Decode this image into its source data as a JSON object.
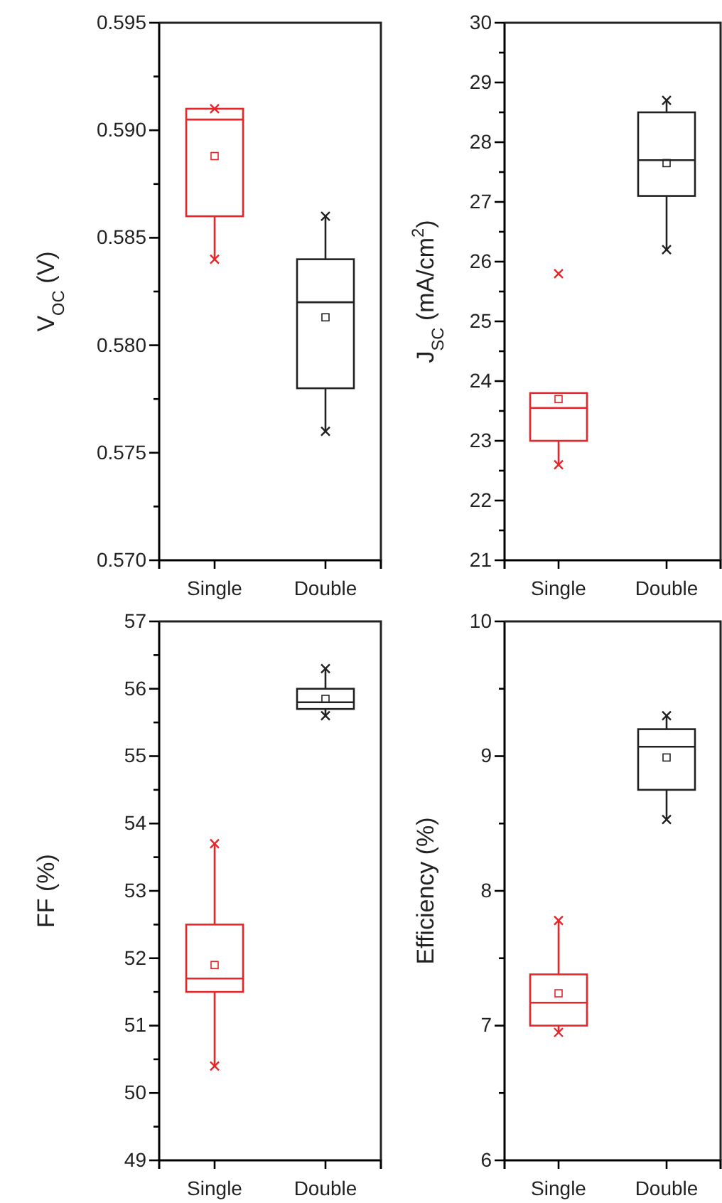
{
  "chart_data": [
    {
      "type": "box",
      "ylabel": "V$_{OC}$ (V)",
      "categories": [
        "Single",
        "Double"
      ],
      "colors": [
        "#e8262a",
        "#222222"
      ],
      "boxes": [
        {
          "low": 0.584,
          "q1": 0.586,
          "median": 0.5905,
          "q3": 0.591,
          "high": 0.591,
          "mean": 0.5888,
          "outliers": [
            0.584,
            0.591
          ]
        },
        {
          "low": 0.576,
          "q1": 0.578,
          "median": 0.582,
          "q3": 0.584,
          "high": 0.586,
          "mean": 0.5813,
          "outliers": [
            0.576,
            0.586
          ]
        }
      ],
      "ylim": [
        0.57,
        0.595
      ],
      "yticks": [
        {
          "value": 0.57,
          "label": "0.570"
        },
        {
          "value": 0.5725,
          "label": null
        },
        {
          "value": 0.575,
          "label": "0.575"
        },
        {
          "value": 0.5775,
          "label": null
        },
        {
          "value": 0.58,
          "label": "0.580"
        },
        {
          "value": 0.5825,
          "label": null
        },
        {
          "value": 0.585,
          "label": "0.585"
        },
        {
          "value": 0.5875,
          "label": null
        },
        {
          "value": 0.59,
          "label": "0.590"
        },
        {
          "value": 0.5925,
          "label": null
        },
        {
          "value": 0.595,
          "label": "0.595"
        }
      ]
    },
    {
      "type": "box",
      "ylabel": "J$_{SC}$ (mA/cm$^{2}$)",
      "categories": [
        "Single",
        "Double"
      ],
      "colors": [
        "#e8262a",
        "#222222"
      ],
      "boxes": [
        {
          "low": 22.6,
          "q1": 23.0,
          "median": 23.55,
          "q3": 23.8,
          "high": 23.8,
          "mean": 23.7,
          "outliers": [
            22.6,
            25.8
          ]
        },
        {
          "low": 26.2,
          "q1": 27.1,
          "median": 27.7,
          "q3": 28.5,
          "high": 28.7,
          "mean": 27.65,
          "outliers": [
            26.2,
            28.7
          ]
        }
      ],
      "ylim": [
        21,
        30
      ],
      "yticks": [
        21,
        {
          "value": 21.5,
          "label": null
        },
        22,
        {
          "value": 22.5,
          "label": null
        },
        23,
        {
          "value": 23.5,
          "label": null
        },
        24,
        {
          "value": 24.5,
          "label": null
        },
        25,
        {
          "value": 25.5,
          "label": null
        },
        26,
        {
          "value": 26.5,
          "label": null
        },
        27,
        {
          "value": 27.5,
          "label": null
        },
        28,
        {
          "value": 28.5,
          "label": null
        },
        29,
        {
          "value": 29.5,
          "label": null
        },
        30
      ]
    },
    {
      "type": "box",
      "ylabel": "FF (%)",
      "categories": [
        "Single",
        "Double"
      ],
      "colors": [
        "#e8262a",
        "#222222"
      ],
      "boxes": [
        {
          "low": 50.4,
          "q1": 51.5,
          "median": 51.7,
          "q3": 52.5,
          "high": 53.7,
          "mean": 51.9,
          "outliers": [
            50.4,
            53.7
          ]
        },
        {
          "low": 55.6,
          "q1": 55.7,
          "median": 55.8,
          "q3": 56.0,
          "high": 56.3,
          "mean": 55.85,
          "outliers": [
            55.6,
            56.3
          ]
        }
      ],
      "ylim": [
        49,
        57
      ],
      "yticks": [
        49,
        {
          "value": 49.5,
          "label": null
        },
        50,
        {
          "value": 50.5,
          "label": null
        },
        51,
        {
          "value": 51.5,
          "label": null
        },
        52,
        {
          "value": 52.5,
          "label": null
        },
        53,
        {
          "value": 53.5,
          "label": null
        },
        54,
        {
          "value": 54.5,
          "label": null
        },
        55,
        {
          "value": 55.5,
          "label": null
        },
        56,
        {
          "value": 56.5,
          "label": null
        },
        57
      ]
    },
    {
      "type": "box",
      "ylabel": "Efficiency (%)",
      "categories": [
        "Single",
        "Double"
      ],
      "colors": [
        "#e8262a",
        "#222222"
      ],
      "boxes": [
        {
          "low": 6.95,
          "q1": 7.0,
          "median": 7.17,
          "q3": 7.38,
          "high": 7.78,
          "mean": 7.24,
          "outliers": [
            6.95,
            7.78
          ]
        },
        {
          "low": 8.53,
          "q1": 8.75,
          "median": 9.07,
          "q3": 9.2,
          "high": 9.3,
          "mean": 8.99,
          "outliers": [
            8.53,
            9.3
          ]
        }
      ],
      "ylim": [
        6,
        10
      ],
      "yticks": [
        6,
        {
          "value": 6.5,
          "label": null
        },
        7,
        {
          "value": 7.5,
          "label": null
        },
        8,
        {
          "value": 8.5,
          "label": null
        },
        9,
        {
          "value": 9.5,
          "label": null
        },
        10
      ]
    }
  ]
}
